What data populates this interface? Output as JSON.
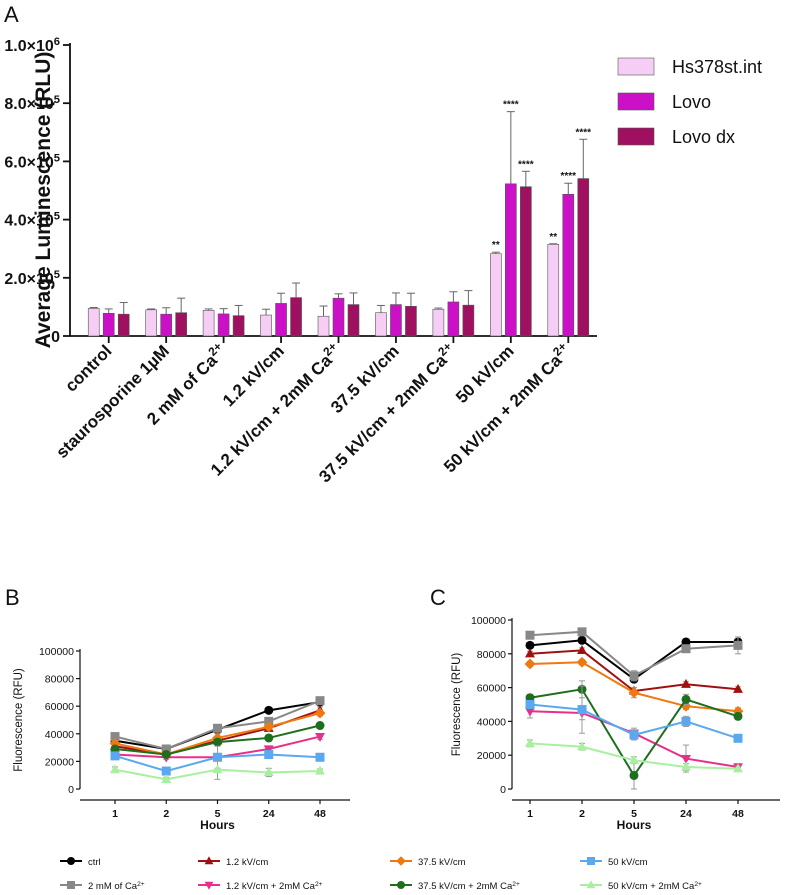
{
  "panels": {
    "A": "A",
    "B": "B",
    "C": "C"
  },
  "chart_data": [
    {
      "panel": "A",
      "type": "bar",
      "ylabel": "Average Luminescence (RLU)",
      "ylim": [
        0,
        1000000
      ],
      "yticks": [
        {
          "value": 0,
          "mant": "0",
          "exp": ""
        },
        {
          "value": 200000,
          "mant": "2.0×10",
          "exp": "5"
        },
        {
          "value": 400000,
          "mant": "4.0×10",
          "exp": "5"
        },
        {
          "value": 600000,
          "mant": "6.0×10",
          "exp": "5"
        },
        {
          "value": 800000,
          "mant": "8.0×10",
          "exp": "5"
        },
        {
          "value": 1000000,
          "mant": "1.0×10",
          "exp": "6"
        }
      ],
      "categories": [
        {
          "text": "control",
          "sup": ""
        },
        {
          "text": "staurosporine 1µM",
          "sup": ""
        },
        {
          "text": "2 mM of Ca",
          "sup": "2+"
        },
        {
          "text": "1.2 kV/cm",
          "sup": ""
        },
        {
          "text": "1.2 kV/cm + 2mM Ca",
          "sup": "2+"
        },
        {
          "text": "37.5 kV/cm",
          "sup": ""
        },
        {
          "text": "37.5 kV/cm + 2mM Ca",
          "sup": "2+"
        },
        {
          "text": "50 kV/cm",
          "sup": ""
        },
        {
          "text": "50 kV/cm + 2mM Ca",
          "sup": "2+"
        }
      ],
      "legend_position": "top-right",
      "series": [
        {
          "name": "Hs378st.int",
          "color": "#f5cdf5",
          "values": [
            95000,
            90000,
            88000,
            72000,
            68000,
            80000,
            92000,
            283000,
            315000
          ],
          "errors": [
            3000,
            3000,
            5000,
            20000,
            35000,
            25000,
            4000,
            5000,
            2000
          ],
          "stars": [
            "",
            "",
            "",
            "",
            "",
            "",
            "",
            "**",
            "**"
          ]
        },
        {
          "name": "Lovo",
          "color": "#cc10c8",
          "values": [
            78000,
            75000,
            76000,
            112000,
            130000,
            108000,
            117000,
            523000,
            487000
          ],
          "errors": [
            15000,
            22000,
            18000,
            35000,
            15000,
            40000,
            35000,
            248000,
            38000
          ],
          "stars": [
            "",
            "",
            "",
            "",
            "",
            "",
            "",
            "****",
            "****"
          ]
        },
        {
          "name": "Lovo dx",
          "color": "#a01060",
          "values": [
            75000,
            80000,
            70000,
            132000,
            108000,
            102000,
            106000,
            513000,
            541000
          ],
          "errors": [
            40000,
            50000,
            35000,
            50000,
            40000,
            45000,
            50000,
            53000,
            135000
          ],
          "stars": [
            "",
            "",
            "",
            "",
            "",
            "",
            "",
            "****",
            "****"
          ]
        }
      ]
    },
    {
      "panel": "B",
      "type": "line",
      "ylabel": "Fluorescence (RFU)",
      "xlabel": "Hours",
      "categories": [
        "1",
        "2",
        "5",
        "24",
        "48"
      ],
      "ylim": [
        0,
        100000
      ],
      "yticks": [
        "0",
        "20000",
        "40000",
        "60000",
        "80000",
        "100000"
      ],
      "series": [
        {
          "key": "ctrl",
          "values": [
            35000,
            29000,
            43000,
            57000,
            63000
          ],
          "errors": [
            1500,
            1500,
            1500,
            1500,
            1500
          ]
        },
        {
          "key": "ca",
          "values": [
            38000,
            29000,
            44000,
            49000,
            64000
          ],
          "errors": [
            2000,
            1500,
            2000,
            2000,
            2000
          ]
        },
        {
          "key": "k12",
          "values": [
            31000,
            25000,
            35000,
            44000,
            57000
          ],
          "errors": [
            2000,
            2000,
            2000,
            2000,
            2500
          ]
        },
        {
          "key": "k12ca",
          "values": [
            25000,
            23000,
            23000,
            29000,
            38000
          ],
          "errors": [
            1500,
            1500,
            1500,
            2000,
            2000
          ]
        },
        {
          "key": "k37",
          "values": [
            33000,
            25000,
            37000,
            45000,
            55000
          ],
          "errors": [
            2000,
            2000,
            3000,
            2000,
            2000
          ]
        },
        {
          "key": "k37ca",
          "values": [
            29000,
            25000,
            34000,
            37000,
            46000
          ],
          "errors": [
            2000,
            2000,
            2000,
            2000,
            2000
          ]
        },
        {
          "key": "k50",
          "values": [
            24000,
            13000,
            23000,
            25000,
            23000
          ],
          "errors": [
            1500,
            2000,
            8000,
            2000,
            1500
          ]
        },
        {
          "key": "k50ca",
          "values": [
            14000,
            7000,
            14000,
            12000,
            13000
          ],
          "errors": [
            2000,
            1500,
            7000,
            3000,
            1500
          ]
        }
      ]
    },
    {
      "panel": "C",
      "type": "line",
      "ylabel": "Fluorescence (RFU)",
      "xlabel": "Hours",
      "categories": [
        "1",
        "2",
        "5",
        "24",
        "48"
      ],
      "ylim": [
        0,
        100000
      ],
      "yticks": [
        "0",
        "20000",
        "40000",
        "60000",
        "80000",
        "100000"
      ],
      "series": [
        {
          "key": "ctrl",
          "values": [
            85000,
            88000,
            65000,
            87000,
            87000
          ],
          "errors": [
            1500,
            1500,
            2000,
            1500,
            1500
          ]
        },
        {
          "key": "ca",
          "values": [
            91000,
            93000,
            67000,
            83000,
            85000
          ],
          "errors": [
            1500,
            1500,
            3000,
            2000,
            5000
          ]
        },
        {
          "key": "k12",
          "values": [
            80000,
            82000,
            58000,
            62000,
            59000
          ],
          "errors": [
            1500,
            1500,
            2000,
            1500,
            1500
          ]
        },
        {
          "key": "k12ca",
          "values": [
            46000,
            45000,
            33000,
            18000,
            13000
          ],
          "errors": [
            4000,
            4000,
            3000,
            8000,
            2000
          ]
        },
        {
          "key": "k37",
          "values": [
            74000,
            75000,
            57000,
            49000,
            46000
          ],
          "errors": [
            1500,
            1500,
            3000,
            2000,
            2000
          ]
        },
        {
          "key": "k37ca",
          "values": [
            54000,
            59000,
            8000,
            53000,
            43000
          ],
          "errors": [
            2000,
            5000,
            8000,
            3000,
            2000
          ]
        },
        {
          "key": "k50",
          "values": [
            50000,
            47000,
            32000,
            40000,
            30000
          ],
          "errors": [
            2000,
            14000,
            3000,
            3000,
            2000
          ]
        },
        {
          "key": "k50ca",
          "values": [
            27000,
            25000,
            17000,
            13000,
            12000
          ],
          "errors": [
            2000,
            2000,
            2000,
            2000,
            1500
          ]
        }
      ]
    }
  ],
  "line_legend": [
    {
      "key": "ctrl",
      "text": "ctrl",
      "sup": "",
      "color": "#000000",
      "marker": "circle"
    },
    {
      "key": "k12",
      "text": "1.2 kV/cm",
      "sup": "",
      "color": "#a01010",
      "marker": "triangle-up"
    },
    {
      "key": "k37",
      "text": "37.5 kV/cm",
      "sup": "",
      "color": "#f07810",
      "marker": "diamond"
    },
    {
      "key": "k50",
      "text": "50 kV/cm",
      "sup": "",
      "color": "#5aa8f0",
      "marker": "square"
    },
    {
      "key": "ca",
      "text": "2 mM of Ca",
      "sup": "2+",
      "color": "#888888",
      "marker": "square"
    },
    {
      "key": "k12ca",
      "text": "1.2 kV/cm + 2mM Ca",
      "sup": "2+",
      "color": "#e8308a",
      "marker": "triangle-down"
    },
    {
      "key": "k37ca",
      "text": "37.5 kV/cm + 2mM Ca",
      "sup": "2+",
      "color": "#1e6e1e",
      "marker": "circle"
    },
    {
      "key": "k50ca",
      "text": "50 kV/cm + 2mM Ca",
      "sup": "2+",
      "color": "#a8f0a0",
      "marker": "triangle-up"
    }
  ]
}
